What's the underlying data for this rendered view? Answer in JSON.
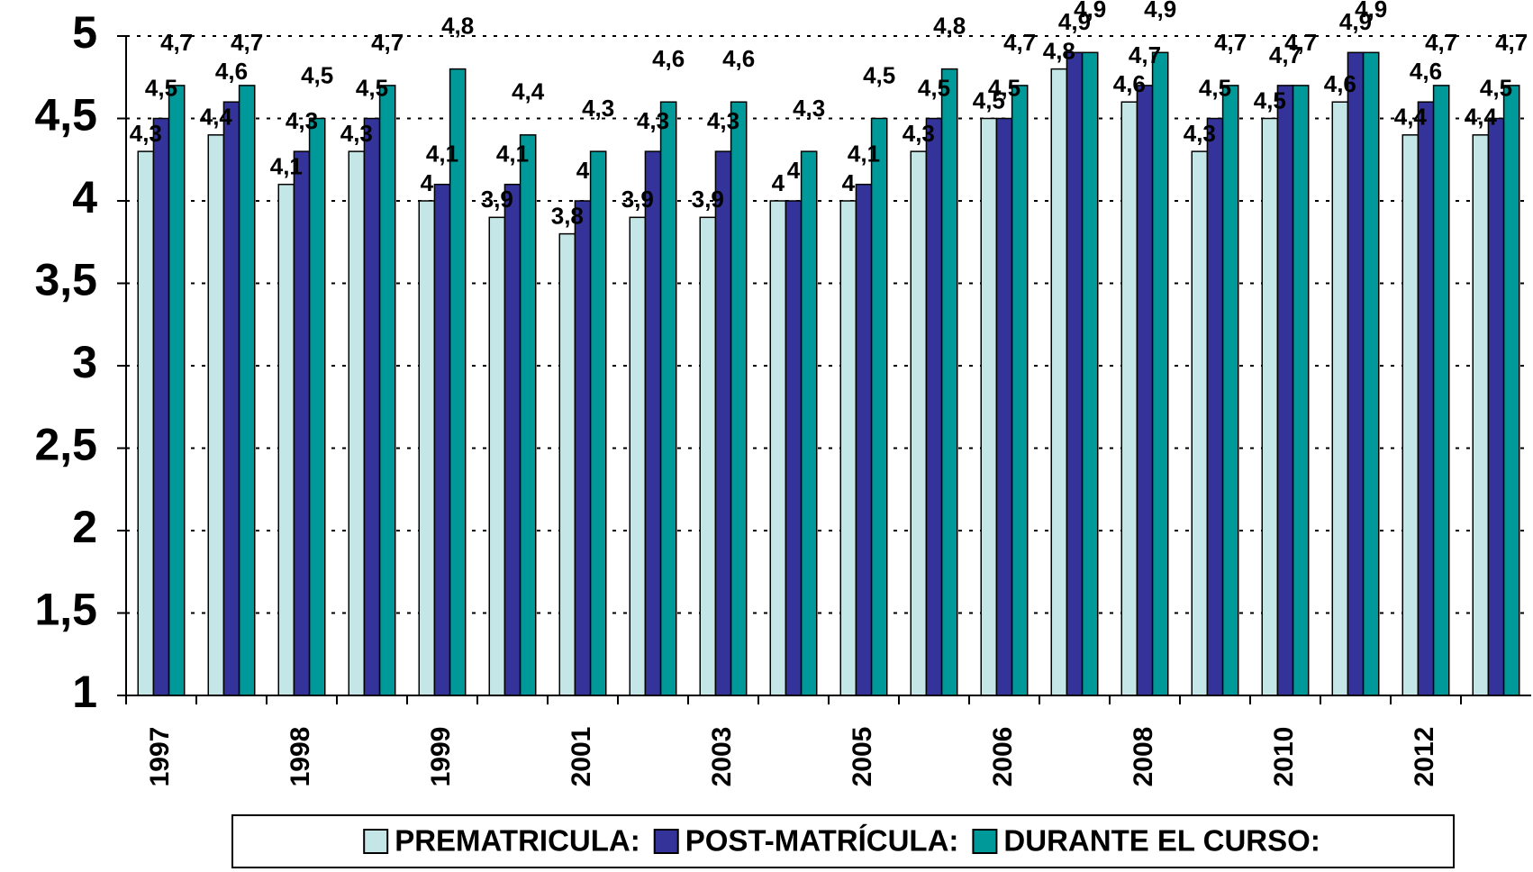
{
  "chart_data": {
    "type": "bar",
    "categories": [
      "1997",
      null,
      "1998",
      null,
      "1999",
      null,
      "2001",
      null,
      "2003",
      null,
      "2005",
      null,
      "2006",
      null,
      "2008",
      null,
      "2010",
      null,
      "2012",
      null
    ],
    "series": [
      {
        "name": "PREMATRICULA:",
        "color": "#c4e6e6",
        "values": [
          4.3,
          4.4,
          4.1,
          4.3,
          4,
          3.9,
          3.8,
          3.9,
          3.9,
          4,
          4,
          4.3,
          4.5,
          4.8,
          4.6,
          4.3,
          4.5,
          4.6,
          4.4,
          4.4
        ],
        "value_labels": [
          "4,3",
          "4,4",
          "4,1",
          "4,3",
          "4",
          "3,9",
          "3,8",
          "3,9",
          "3,9",
          "4",
          "4",
          "4,3",
          "4,5",
          "4,8",
          "4,6",
          "4,3",
          "4,5",
          "4,6",
          "4,4",
          "4,4"
        ]
      },
      {
        "name": "POST-MATRÍCULA:",
        "color": "#333399",
        "values": [
          4.5,
          4.6,
          4.3,
          4.5,
          4.1,
          4.1,
          4,
          4.3,
          4.3,
          4,
          4.1,
          4.5,
          4.5,
          4.9,
          4.7,
          4.5,
          4.7,
          4.9,
          4.6,
          4.5
        ],
        "value_labels": [
          "4,5",
          "4,6",
          "4,3",
          "4,5",
          "4,1",
          "4,1",
          "4",
          "4,3",
          "4,3",
          "4",
          "4,1",
          "4,5",
          "4,5",
          "4,9",
          "4,7",
          "4,5",
          "4,7",
          "4,9",
          "4,6",
          "4,5"
        ]
      },
      {
        "name": "DURANTE EL CURSO:",
        "color": "#009999",
        "values": [
          4.7,
          4.7,
          4.5,
          4.7,
          4.8,
          4.4,
          4.3,
          4.6,
          4.6,
          4.3,
          4.5,
          4.8,
          4.7,
          4.9,
          4.9,
          4.7,
          4.7,
          4.9,
          4.7,
          4.7
        ],
        "value_labels": [
          "4,7",
          "4,7",
          "4,5",
          "4,7",
          "4,8",
          "4,4",
          "4,3",
          "4,6",
          "4,6",
          "4,3",
          "4,5",
          "4,8",
          "4,7",
          "4,9",
          "4,9",
          "4,7",
          "4,7",
          "4,9",
          "4,7",
          "4,7"
        ]
      }
    ],
    "ylim": [
      1,
      5
    ],
    "yticks": [
      1,
      {
        "value": 1.5,
        "label": "1,5"
      },
      2,
      {
        "value": 2.5,
        "label": "2,5"
      },
      3,
      {
        "value": 3.5,
        "label": "3,5"
      },
      4,
      {
        "value": 4.5,
        "label": "4,5"
      },
      5
    ],
    "grid": true,
    "legend": "bottom"
  }
}
